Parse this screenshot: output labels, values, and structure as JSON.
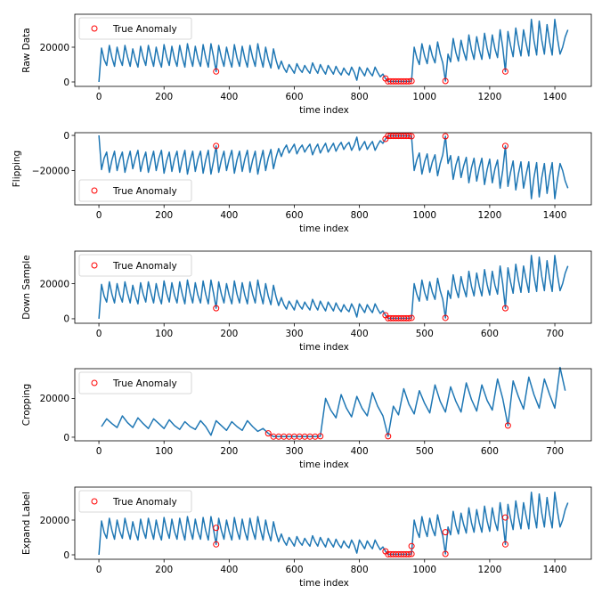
{
  "chart_data": [
    {
      "type": "line",
      "ylabel": "Raw Data",
      "xlabel": "time index",
      "xlim": [
        -74,
        1512
      ],
      "ylim": [
        -2560,
        38970
      ],
      "xticks": [
        0,
        200,
        400,
        600,
        800,
        1000,
        1200,
        1400
      ],
      "xtick_labels": [
        "0",
        "200",
        "400",
        "600",
        "800",
        "1000",
        "1200",
        "1400"
      ],
      "yticks": [
        0,
        20000
      ],
      "ytick_labels": [
        "0",
        "20000"
      ],
      "legend": {
        "label": "True Anomaly",
        "placement": "upper-left"
      },
      "series": {
        "source": "raw",
        "transform": "none"
      },
      "anomalies": [
        [
          360,
          6000
        ],
        [
          880,
          2000
        ],
        [
          888,
          300
        ],
        [
          896,
          300
        ],
        [
          904,
          300
        ],
        [
          912,
          300
        ],
        [
          920,
          300
        ],
        [
          928,
          300
        ],
        [
          936,
          300
        ],
        [
          944,
          300
        ],
        [
          952,
          300
        ],
        [
          960,
          500
        ],
        [
          1064,
          500
        ],
        [
          1248,
          6000
        ]
      ]
    },
    {
      "type": "line",
      "ylabel": "Flipping",
      "xlabel": "time index",
      "xlim": [
        -74,
        1512
      ],
      "ylim": [
        -39490,
        1540
      ],
      "xticks": [
        0,
        200,
        400,
        600,
        800,
        1000,
        1200,
        1400
      ],
      "xtick_labels": [
        "0",
        "200",
        "400",
        "600",
        "800",
        "1000",
        "1200",
        "1400"
      ],
      "yticks": [
        0,
        -20000
      ],
      "ytick_labels": [
        "0",
        "−20000"
      ],
      "legend": {
        "label": "True Anomaly",
        "placement": "lower-left"
      },
      "series": {
        "source": "raw",
        "transform": "negate"
      },
      "anomalies": [
        [
          360,
          -6000
        ],
        [
          880,
          -2000
        ],
        [
          888,
          -300
        ],
        [
          896,
          -300
        ],
        [
          904,
          -300
        ],
        [
          912,
          -300
        ],
        [
          920,
          -300
        ],
        [
          928,
          -300
        ],
        [
          936,
          -300
        ],
        [
          944,
          -300
        ],
        [
          952,
          -300
        ],
        [
          960,
          -500
        ],
        [
          1064,
          -500
        ],
        [
          1248,
          -6000
        ]
      ]
    },
    {
      "type": "line",
      "ylabel": "Down Sample",
      "xlabel": "time index",
      "xlim": [
        -37,
        756
      ],
      "ylim": [
        -2560,
        38460
      ],
      "xticks": [
        0,
        100,
        200,
        300,
        400,
        500,
        600,
        700
      ],
      "xtick_labels": [
        "0",
        "100",
        "200",
        "300",
        "400",
        "500",
        "600",
        "700"
      ],
      "yticks": [
        0,
        20000
      ],
      "ytick_labels": [
        "0",
        "20000"
      ],
      "legend": {
        "label": "True Anomaly",
        "placement": "upper-left"
      },
      "series": {
        "source": "raw",
        "transform": "downsample",
        "factor": 2
      },
      "anomalies": [
        [
          180,
          6000
        ],
        [
          440,
          2000
        ],
        [
          444,
          300
        ],
        [
          448,
          300
        ],
        [
          452,
          300
        ],
        [
          456,
          300
        ],
        [
          460,
          300
        ],
        [
          464,
          300
        ],
        [
          468,
          300
        ],
        [
          472,
          300
        ],
        [
          476,
          300
        ],
        [
          480,
          500
        ],
        [
          532,
          500
        ],
        [
          624,
          6000
        ]
      ]
    },
    {
      "type": "line",
      "ylabel": "Cropping",
      "xlabel": "time index",
      "xlim": [
        -37,
        756
      ],
      "ylim": [
        -1860,
        35350
      ],
      "xticks": [
        0,
        100,
        200,
        300,
        400,
        500,
        600,
        700
      ],
      "xtick_labels": [
        "0",
        "100",
        "200",
        "300",
        "400",
        "500",
        "600",
        "700"
      ],
      "yticks": [
        0,
        20000
      ],
      "ytick_labels": [
        "0",
        "20000"
      ],
      "legend": {
        "label": "True Anomaly",
        "placement": "upper-left"
      },
      "series": {
        "source": "raw",
        "transform": "crop",
        "start": 620,
        "end": 1340
      },
      "anomalies": [
        [
          260,
          2000
        ],
        [
          268,
          300
        ],
        [
          276,
          300
        ],
        [
          284,
          300
        ],
        [
          292,
          300
        ],
        [
          300,
          300
        ],
        [
          308,
          300
        ],
        [
          316,
          300
        ],
        [
          324,
          300
        ],
        [
          332,
          300
        ],
        [
          340,
          500
        ],
        [
          444,
          500
        ],
        [
          628,
          6000
        ]
      ]
    },
    {
      "type": "line",
      "ylabel": "Expand Label",
      "xlabel": "time index",
      "xlim": [
        -74,
        1512
      ],
      "ylim": [
        -2560,
        38970
      ],
      "xticks": [
        0,
        200,
        400,
        600,
        800,
        1000,
        1200,
        1400
      ],
      "xtick_labels": [
        "0",
        "200",
        "400",
        "600",
        "800",
        "1000",
        "1200",
        "1400"
      ],
      "yticks": [
        0,
        20000
      ],
      "ytick_labels": [
        "0",
        "20000"
      ],
      "legend": {
        "label": "True Anomaly",
        "placement": "upper-left"
      },
      "series": {
        "source": "raw",
        "transform": "none"
      },
      "anomalies": [
        [
          360,
          6000
        ],
        [
          360,
          15500
        ],
        [
          880,
          2000
        ],
        [
          888,
          300
        ],
        [
          896,
          300
        ],
        [
          904,
          300
        ],
        [
          912,
          300
        ],
        [
          920,
          300
        ],
        [
          928,
          300
        ],
        [
          936,
          300
        ],
        [
          944,
          300
        ],
        [
          952,
          300
        ],
        [
          960,
          500
        ],
        [
          960,
          5000
        ],
        [
          1064,
          500
        ],
        [
          1064,
          13000
        ],
        [
          1248,
          6000
        ],
        [
          1248,
          21500
        ]
      ]
    }
  ],
  "raw_series": {
    "x": [
      0,
      8,
      16,
      24,
      32,
      40,
      48,
      56,
      64,
      72,
      80,
      88,
      96,
      104,
      112,
      120,
      128,
      136,
      144,
      152,
      160,
      168,
      176,
      184,
      192,
      200,
      208,
      216,
      224,
      232,
      240,
      248,
      256,
      264,
      272,
      280,
      288,
      296,
      304,
      312,
      320,
      328,
      336,
      344,
      352,
      360,
      368,
      376,
      384,
      392,
      400,
      408,
      416,
      424,
      432,
      440,
      448,
      456,
      464,
      472,
      480,
      488,
      496,
      504,
      512,
      520,
      528,
      536,
      544,
      552,
      560,
      568,
      576,
      584,
      592,
      600,
      608,
      616,
      624,
      632,
      640,
      648,
      656,
      664,
      672,
      680,
      688,
      696,
      704,
      712,
      720,
      728,
      736,
      744,
      752,
      760,
      768,
      776,
      784,
      792,
      800,
      808,
      816,
      824,
      832,
      840,
      848,
      856,
      864,
      872,
      880,
      888,
      896,
      904,
      912,
      920,
      928,
      936,
      944,
      952,
      960,
      968,
      976,
      984,
      992,
      1000,
      1008,
      1016,
      1024,
      1032,
      1040,
      1048,
      1056,
      1064,
      1072,
      1080,
      1088,
      1096,
      1104,
      1112,
      1120,
      1128,
      1136,
      1144,
      1152,
      1160,
      1168,
      1176,
      1184,
      1192,
      1200,
      1208,
      1216,
      1224,
      1232,
      1240,
      1248,
      1256,
      1264,
      1272,
      1280,
      1288,
      1296,
      1304,
      1312,
      1320,
      1328,
      1336,
      1344,
      1352,
      1360,
      1368,
      1376,
      1384,
      1392,
      1400,
      1408,
      1416,
      1424,
      1432,
      1440
    ],
    "y": [
      0,
      19500,
      13000,
      9500,
      21000,
      14000,
      9000,
      20000,
      13500,
      9500,
      21000,
      14500,
      9000,
      19000,
      13000,
      8500,
      20500,
      14000,
      9500,
      21000,
      14500,
      9000,
      20000,
      13000,
      8500,
      21500,
      14500,
      9500,
      20500,
      13500,
      9000,
      21000,
      14000,
      8500,
      22000,
      14500,
      9000,
      20500,
      13500,
      9000,
      21500,
      14000,
      8500,
      22000,
      14500,
      6000,
      21000,
      14000,
      9000,
      20000,
      13500,
      8500,
      21500,
      14000,
      9000,
      20500,
      13500,
      8500,
      21000,
      14000,
      9000,
      22000,
      14500,
      8500,
      20000,
      13000,
      8000,
      19000,
      12500,
      7500,
      12000,
      8000,
      5500,
      10000,
      7500,
      5000,
      10500,
      7500,
      5500,
      9500,
      7000,
      5000,
      11000,
      7500,
      5000,
      10000,
      7000,
      4500,
      9500,
      7000,
      4500,
      9000,
      6000,
      4000,
      8000,
      5500,
      4000,
      8500,
      5500,
      1000,
      8500,
      6000,
      3500,
      8000,
      5500,
      3500,
      8500,
      5500,
      3000,
      4500,
      2000,
      300,
      300,
      300,
      300,
      300,
      300,
      300,
      300,
      300,
      500,
      20000,
      14000,
      10000,
      22000,
      15000,
      10500,
      21000,
      15000,
      11000,
      23000,
      16000,
      11000,
      500,
      16000,
      11500,
      25000,
      17000,
      12000,
      24000,
      17500,
      12500,
      27000,
      18500,
      13000,
      26000,
      18500,
      13000,
      28000,
      19500,
      13500,
      27000,
      19000,
      14000,
      30000,
      20000,
      6000,
      29000,
      21000,
      14500,
      31000,
      22000,
      15000,
      30000,
      22000,
      15000,
      36000,
      24000,
      15500,
      35000,
      24000,
      16000,
      33000,
      23000,
      15500,
      36000,
      25000,
      16000,
      20000,
      26000,
      30000
    ]
  },
  "colors": {
    "line": "#1f77b4",
    "anomaly": "#ff0000",
    "axes": "#000000",
    "legend_border": "#cccccc"
  }
}
